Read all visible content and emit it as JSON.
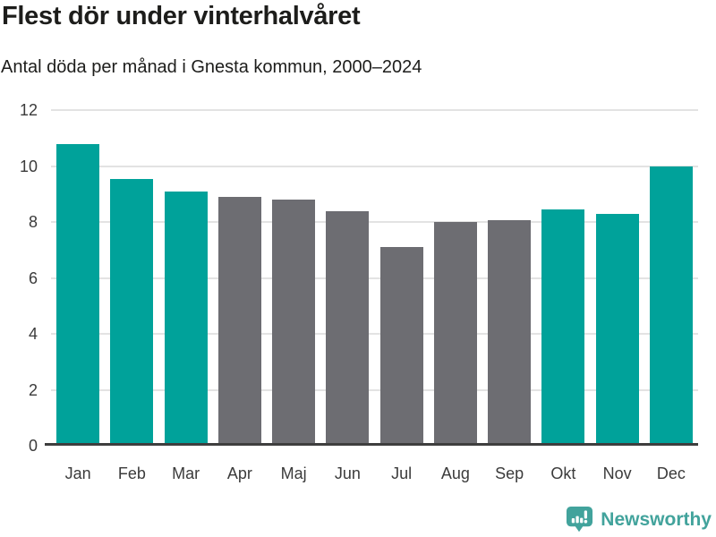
{
  "title": "Flest dör under vinterhalvåret",
  "subtitle": "Antal döda per månad i Gnesta kommun, 2000–2024",
  "chart_data": {
    "type": "bar",
    "title": "Flest dör under vinterhalvåret",
    "subtitle": "Antal döda per månad i Gnesta kommun, 2000–2024",
    "categories": [
      "Jan",
      "Feb",
      "Mar",
      "Apr",
      "Maj",
      "Jun",
      "Jul",
      "Aug",
      "Sep",
      "Okt",
      "Nov",
      "Dec"
    ],
    "values": [
      10.8,
      9.55,
      9.1,
      8.9,
      8.8,
      8.4,
      7.1,
      8.0,
      8.05,
      8.45,
      8.3,
      10.0
    ],
    "bar_color_keys": [
      "teal",
      "teal",
      "teal",
      "gray",
      "gray",
      "gray",
      "gray",
      "gray",
      "gray",
      "teal",
      "teal",
      "teal"
    ],
    "colors": {
      "teal": "#00A29A",
      "gray": "#6D6D72"
    },
    "xlabel": "",
    "ylabel": "",
    "ylim": [
      0,
      12
    ],
    "yticks": [
      0,
      2,
      4,
      6,
      8,
      10,
      12
    ],
    "grid": true,
    "gridline_color": "#E3E3E3",
    "axis_line_color": "#3E3E3E",
    "tick_label_color": "#3B3B3B",
    "legend": "none",
    "highlight_meaning": "teal = winter half-year months (Okt–Mar), gray = summer half-year months (Apr–Sep)"
  },
  "footer": {
    "brand": "Newsworthy",
    "brand_color": "#42A39C",
    "logo_icon": "bar-chart-speech-bubble-icon"
  }
}
